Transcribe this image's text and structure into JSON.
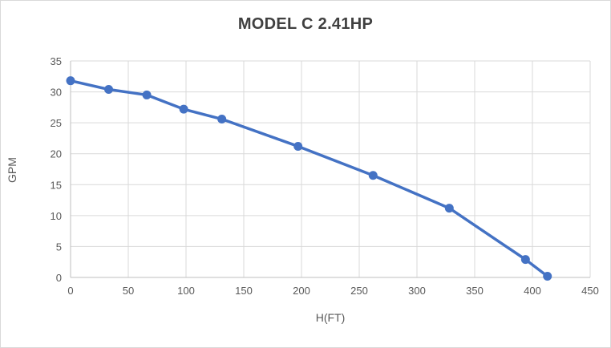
{
  "chart_data": {
    "type": "line",
    "title": "MODEL C 2.41HP",
    "xlabel": "H(FT)",
    "ylabel": "GPM",
    "series": [
      {
        "name": "MODEL C 2.41HP",
        "x": [
          0,
          33,
          66,
          98,
          131,
          197,
          262,
          328,
          394,
          413
        ],
        "y": [
          31.8,
          30.4,
          29.5,
          27.2,
          25.6,
          21.2,
          16.5,
          11.2,
          2.9,
          0.2
        ]
      }
    ],
    "xlim": [
      0,
      450
    ],
    "ylim": [
      0,
      35
    ],
    "xticks": [
      0,
      50,
      100,
      150,
      200,
      250,
      300,
      350,
      400,
      450
    ],
    "yticks": [
      0,
      5,
      10,
      15,
      20,
      25,
      30,
      35
    ],
    "grid": true,
    "legend_position": "none",
    "marker": "circle",
    "colors": {
      "series": "#4472C4",
      "grid": "#d9d9d9",
      "axis": "#bfbfbf",
      "tick_text": "#595959",
      "title_text": "#404040",
      "background": "#ffffff",
      "frame_border": "#d9d9d9"
    }
  }
}
